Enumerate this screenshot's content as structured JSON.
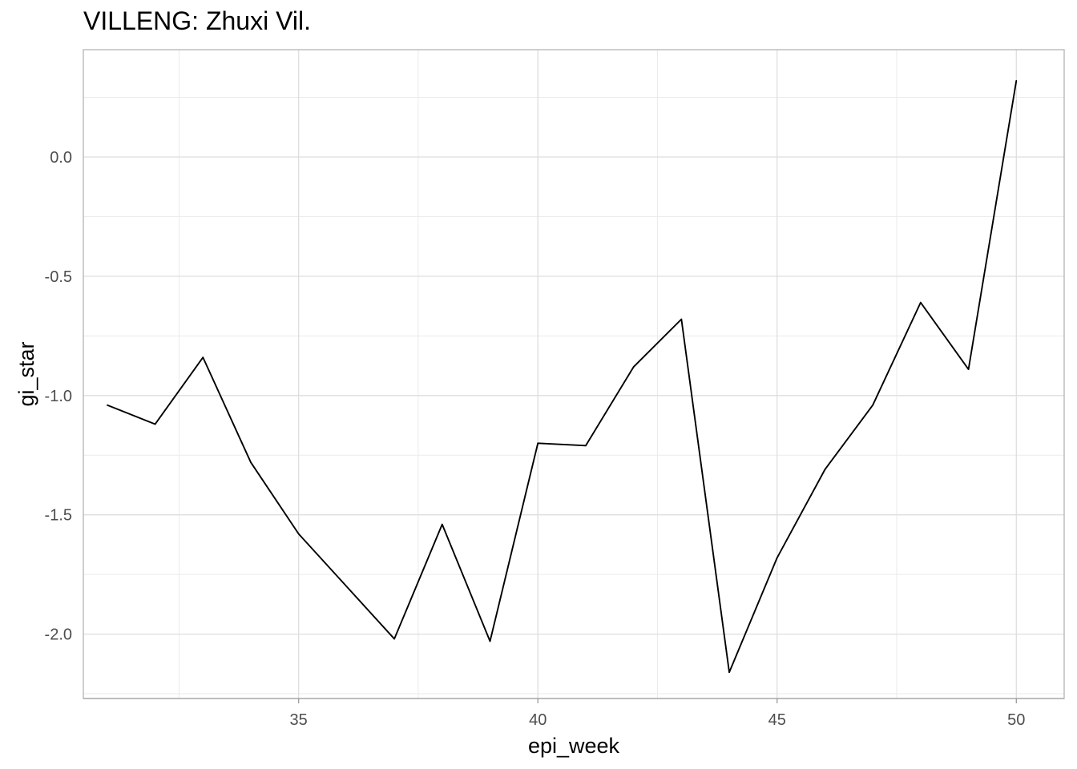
{
  "chart_data": {
    "type": "line",
    "title": "VILLENG: Zhuxi Vil.",
    "xlabel": "epi_week",
    "ylabel": "gi_star",
    "xlim": [
      30.5,
      51
    ],
    "ylim": [
      -2.27,
      0.45
    ],
    "x_ticks": [
      35,
      40,
      45,
      50
    ],
    "x_tick_labels": [
      "35",
      "40",
      "45",
      "50"
    ],
    "x_minor_ticks": [
      32.5,
      37.5,
      42.5,
      47.5
    ],
    "y_ticks": [
      0.0,
      -0.5,
      -1.0,
      -1.5,
      -2.0
    ],
    "y_tick_labels": [
      "0.0",
      "-0.5",
      "-1.0",
      "-1.5",
      "-2.0"
    ],
    "y_minor_ticks": [
      0.25,
      -0.25,
      -0.75,
      -1.25,
      -1.75,
      -2.25
    ],
    "grid": true,
    "line_color": "#000000",
    "series": [
      {
        "x": [
          31,
          32,
          33,
          34,
          35,
          36,
          37,
          38,
          39,
          40,
          41,
          42,
          43,
          44,
          45,
          46,
          47,
          48,
          49,
          50
        ],
        "values": [
          -1.04,
          -1.12,
          -0.84,
          -1.28,
          -1.58,
          -1.8,
          -2.02,
          -1.54,
          -2.03,
          -1.2,
          -1.21,
          -0.88,
          -0.68,
          -2.16,
          -1.68,
          -1.31,
          -1.04,
          -0.61,
          -0.89,
          0.32
        ]
      }
    ]
  }
}
